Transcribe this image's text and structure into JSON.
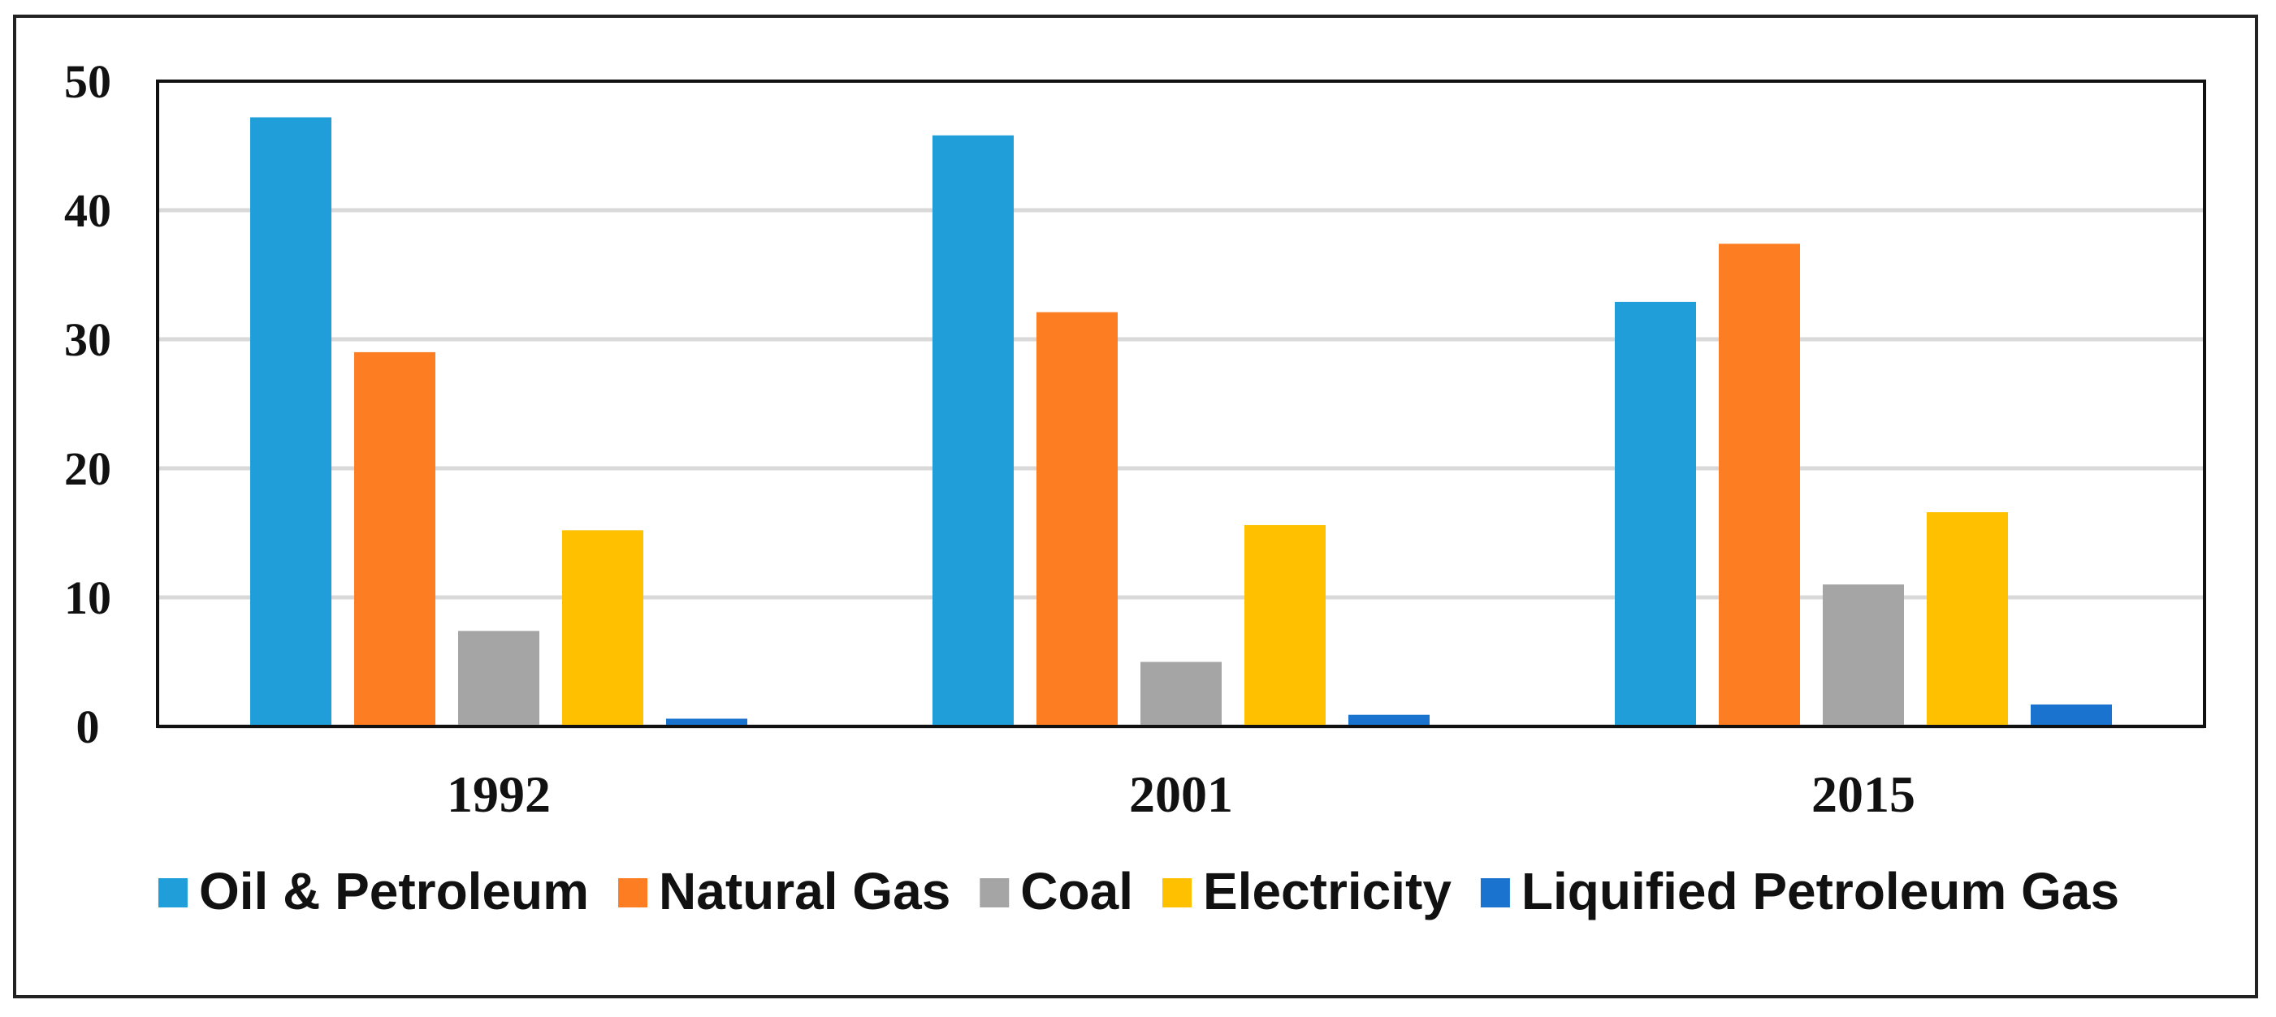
{
  "chart_data": {
    "type": "bar",
    "title": "",
    "xlabel": "",
    "ylabel": "",
    "ylim": [
      0,
      50
    ],
    "yticks": [
      0,
      10,
      20,
      30,
      40,
      50
    ],
    "grid": true,
    "legend_position": "bottom",
    "categories": [
      "1992",
      "2001",
      "2015"
    ],
    "series": [
      {
        "name": "Oil & Petroleum",
        "color": "#1f9ed9",
        "values": [
          47.2,
          45.8,
          32.9
        ]
      },
      {
        "name": "Natural Gas",
        "color": "#fd7e22",
        "values": [
          29.0,
          32.1,
          37.4
        ]
      },
      {
        "name": "Coal",
        "color": "#a5a5a5",
        "values": [
          7.4,
          5.0,
          11.0
        ]
      },
      {
        "name": "Electricity",
        "color": "#ffc000",
        "values": [
          15.2,
          15.6,
          16.6
        ]
      },
      {
        "name": "Liquified Petroleum Gas",
        "color": "#1a73cf",
        "values": [
          0.6,
          0.9,
          1.7
        ]
      }
    ]
  }
}
